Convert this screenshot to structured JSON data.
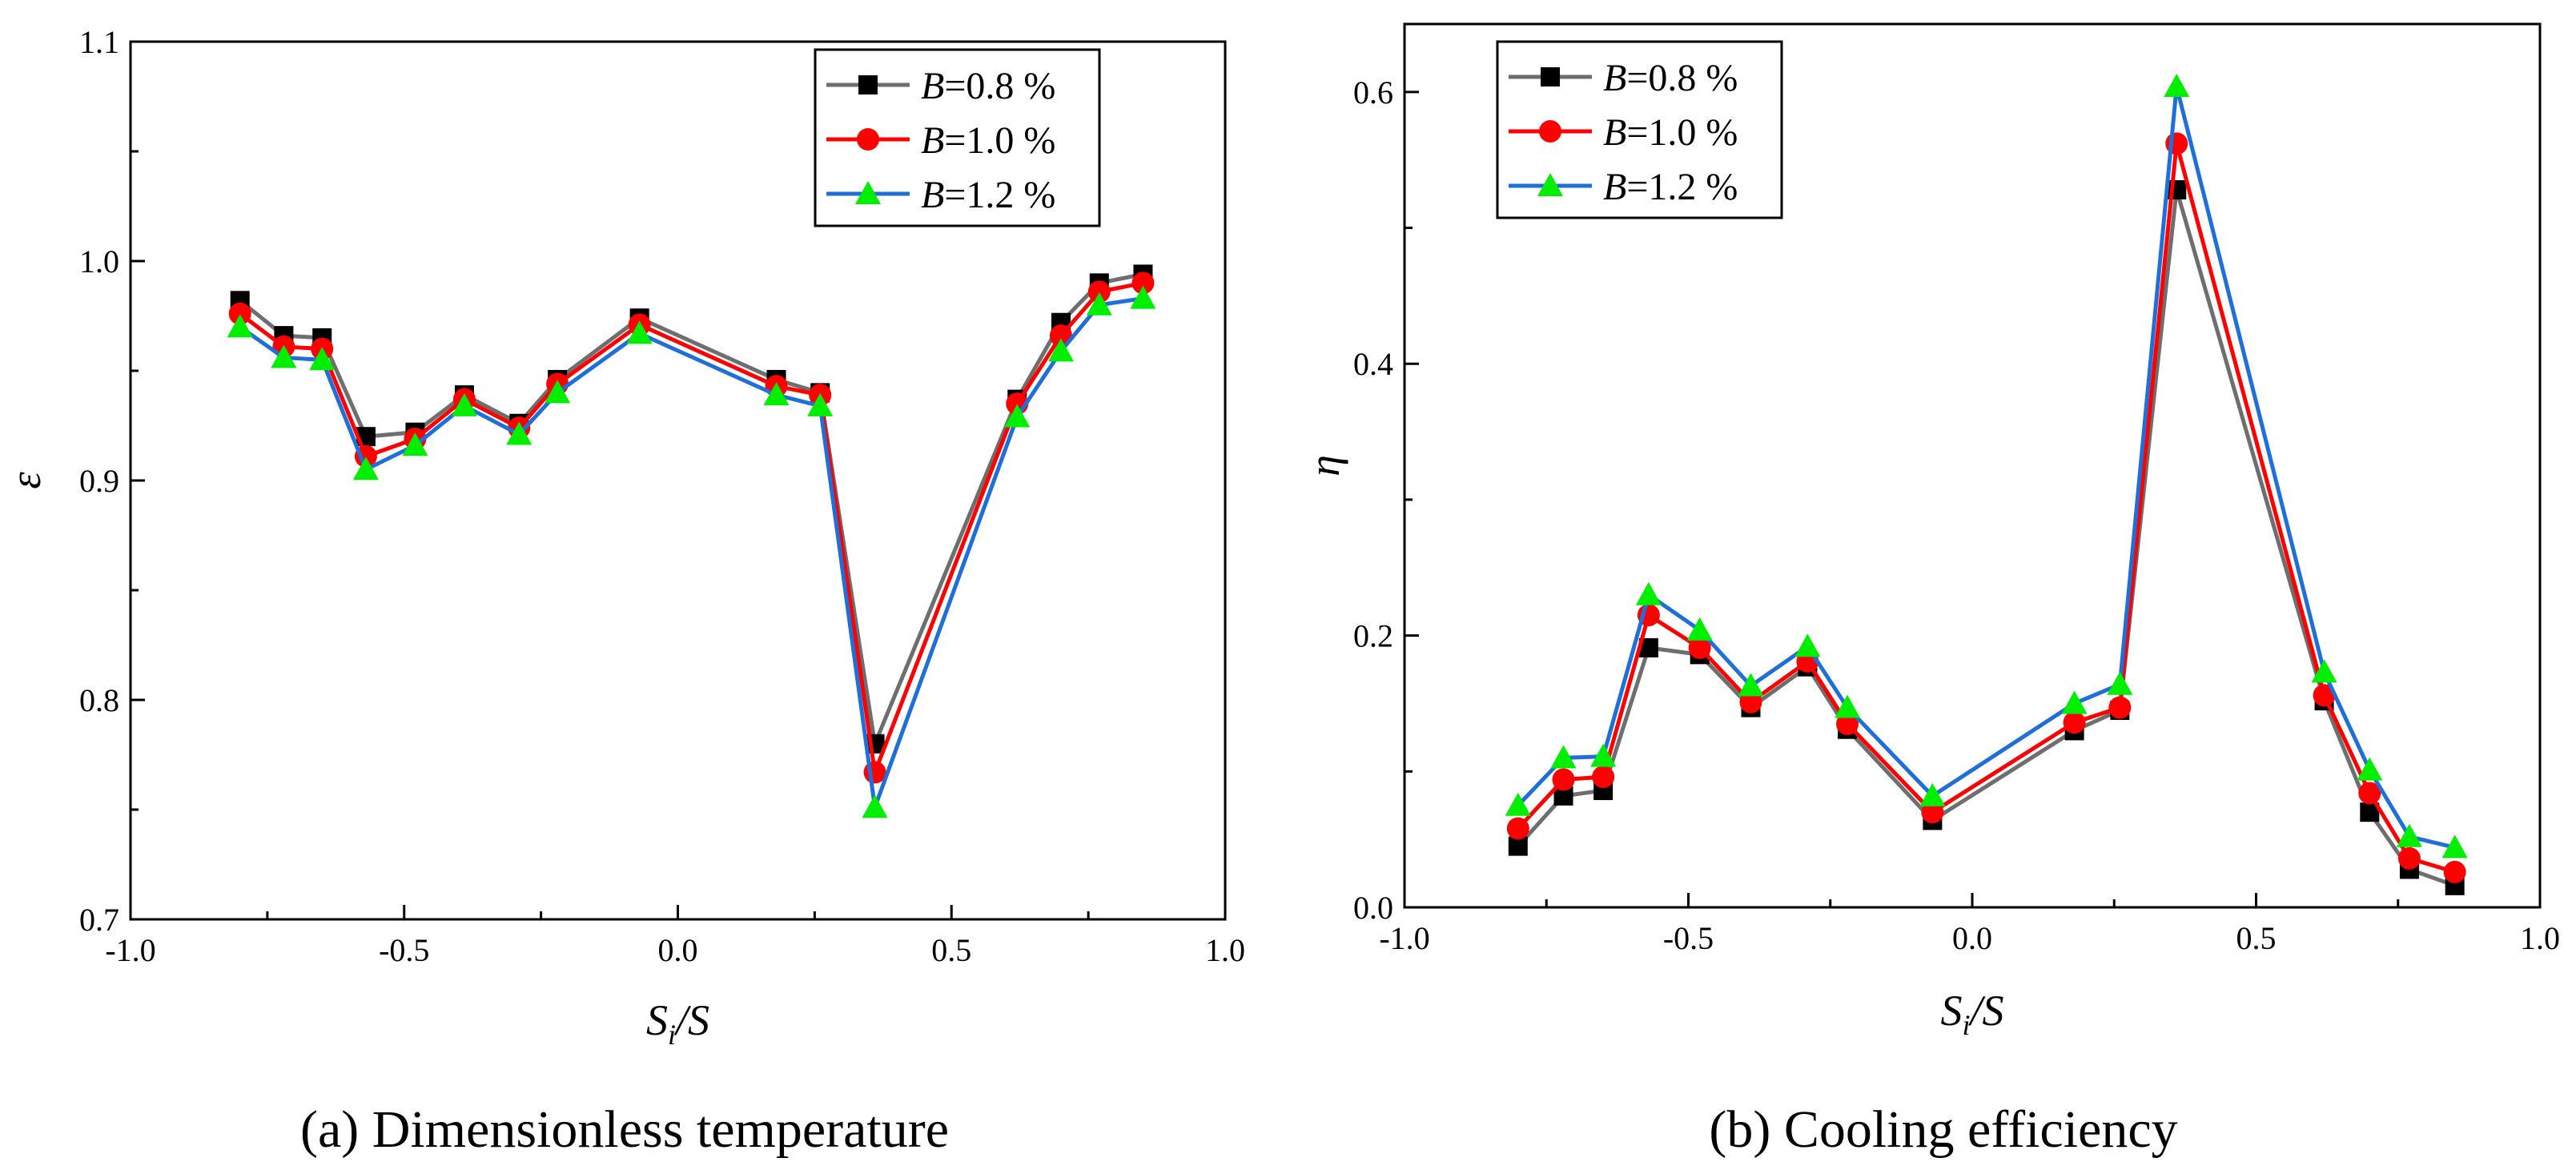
{
  "chart_data": [
    {
      "type": "line",
      "panel": "a",
      "caption": "(a) Dimensionless temperature",
      "xlabel_main": "S",
      "xlabel_sub": "i",
      "xlabel_tail": "/S",
      "ylabel": "ε",
      "xlim": [
        -1.0,
        1.0
      ],
      "ylim": [
        0.7,
        1.1
      ],
      "xticks": [
        -1.0,
        -0.5,
        0.0,
        0.5,
        1.0
      ],
      "yticks": [
        0.7,
        0.8,
        0.9,
        1.0,
        1.1
      ],
      "xtick_labels": [
        "-1.0",
        "-0.5",
        "0.0",
        "0.5",
        "1.0"
      ],
      "ytick_labels": [
        "0.7",
        "0.8",
        "0.9",
        "1.0",
        "1.1"
      ],
      "legend_position": "top-right",
      "x": [
        -0.8,
        -0.72,
        -0.65,
        -0.57,
        -0.48,
        -0.39,
        -0.29,
        -0.22,
        -0.07,
        0.18,
        0.26,
        0.36,
        0.62,
        0.7,
        0.77,
        0.85
      ],
      "series": [
        {
          "name": "B=0.8 %",
          "var": "B",
          "rest": "=0.8 %",
          "color": "#6e6e6e",
          "marker": "square",
          "marker_color": "#000000",
          "values": [
            0.982,
            0.966,
            0.965,
            0.92,
            0.922,
            0.939,
            0.926,
            0.946,
            0.974,
            0.946,
            0.94,
            0.78,
            0.937,
            0.972,
            0.99,
            0.994
          ]
        },
        {
          "name": "B=1.0 %",
          "var": "B",
          "rest": "=1.0 %",
          "color": "#ff0000",
          "marker": "circle",
          "marker_color": "#ff0000",
          "values": [
            0.976,
            0.961,
            0.96,
            0.911,
            0.919,
            0.937,
            0.924,
            0.944,
            0.971,
            0.943,
            0.939,
            0.767,
            0.935,
            0.966,
            0.986,
            0.99
          ]
        },
        {
          "name": "B=1.2 %",
          "var": "B",
          "rest": "=1.2 %",
          "color": "#1e6fd9",
          "marker": "triangle",
          "marker_color": "#00ee00",
          "values": [
            0.97,
            0.956,
            0.955,
            0.905,
            0.916,
            0.934,
            0.921,
            0.94,
            0.967,
            0.939,
            0.934,
            0.751,
            0.929,
            0.959,
            0.98,
            0.983
          ]
        }
      ]
    },
    {
      "type": "line",
      "panel": "b",
      "caption": "(b) Cooling efficiency",
      "xlabel_main": "S",
      "xlabel_sub": "i",
      "xlabel_tail": "/S",
      "ylabel": "η",
      "xlim": [
        -1.0,
        1.0
      ],
      "ylim": [
        0.0,
        0.65
      ],
      "xticks": [
        -1.0,
        -0.5,
        0.0,
        0.5,
        1.0
      ],
      "yticks": [
        0.0,
        0.2,
        0.4,
        0.6
      ],
      "xtick_labels": [
        "-1.0",
        "-0.5",
        "0.0",
        "0.5",
        "1.0"
      ],
      "ytick_labels": [
        "0.0",
        "0.2",
        "0.4",
        "0.6"
      ],
      "legend_position": "top-left",
      "x": [
        -0.8,
        -0.72,
        -0.65,
        -0.57,
        -0.48,
        -0.39,
        -0.29,
        -0.22,
        -0.07,
        0.18,
        0.26,
        0.36,
        0.62,
        0.7,
        0.77,
        0.85
      ],
      "series": [
        {
          "name": "B=0.8 %",
          "var": "B",
          "rest": "=0.8 %",
          "color": "#6e6e6e",
          "marker": "square",
          "marker_color": "#000000",
          "values": [
            0.045,
            0.082,
            0.086,
            0.191,
            0.186,
            0.147,
            0.177,
            0.131,
            0.064,
            0.13,
            0.145,
            0.528,
            0.152,
            0.07,
            0.028,
            0.016
          ]
        },
        {
          "name": "B=1.0 %",
          "var": "B",
          "rest": "=1.0 %",
          "color": "#ff0000",
          "marker": "circle",
          "marker_color": "#ff0000",
          "values": [
            0.058,
            0.094,
            0.096,
            0.215,
            0.191,
            0.151,
            0.181,
            0.135,
            0.07,
            0.136,
            0.147,
            0.562,
            0.156,
            0.084,
            0.036,
            0.026
          ]
        },
        {
          "name": "B=1.2 %",
          "var": "B",
          "rest": "=1.2 %",
          "color": "#1e6fd9",
          "marker": "triangle",
          "marker_color": "#00ee00",
          "values": [
            0.075,
            0.11,
            0.111,
            0.23,
            0.204,
            0.163,
            0.192,
            0.147,
            0.082,
            0.15,
            0.164,
            0.604,
            0.173,
            0.101,
            0.052,
            0.044
          ]
        }
      ]
    }
  ]
}
